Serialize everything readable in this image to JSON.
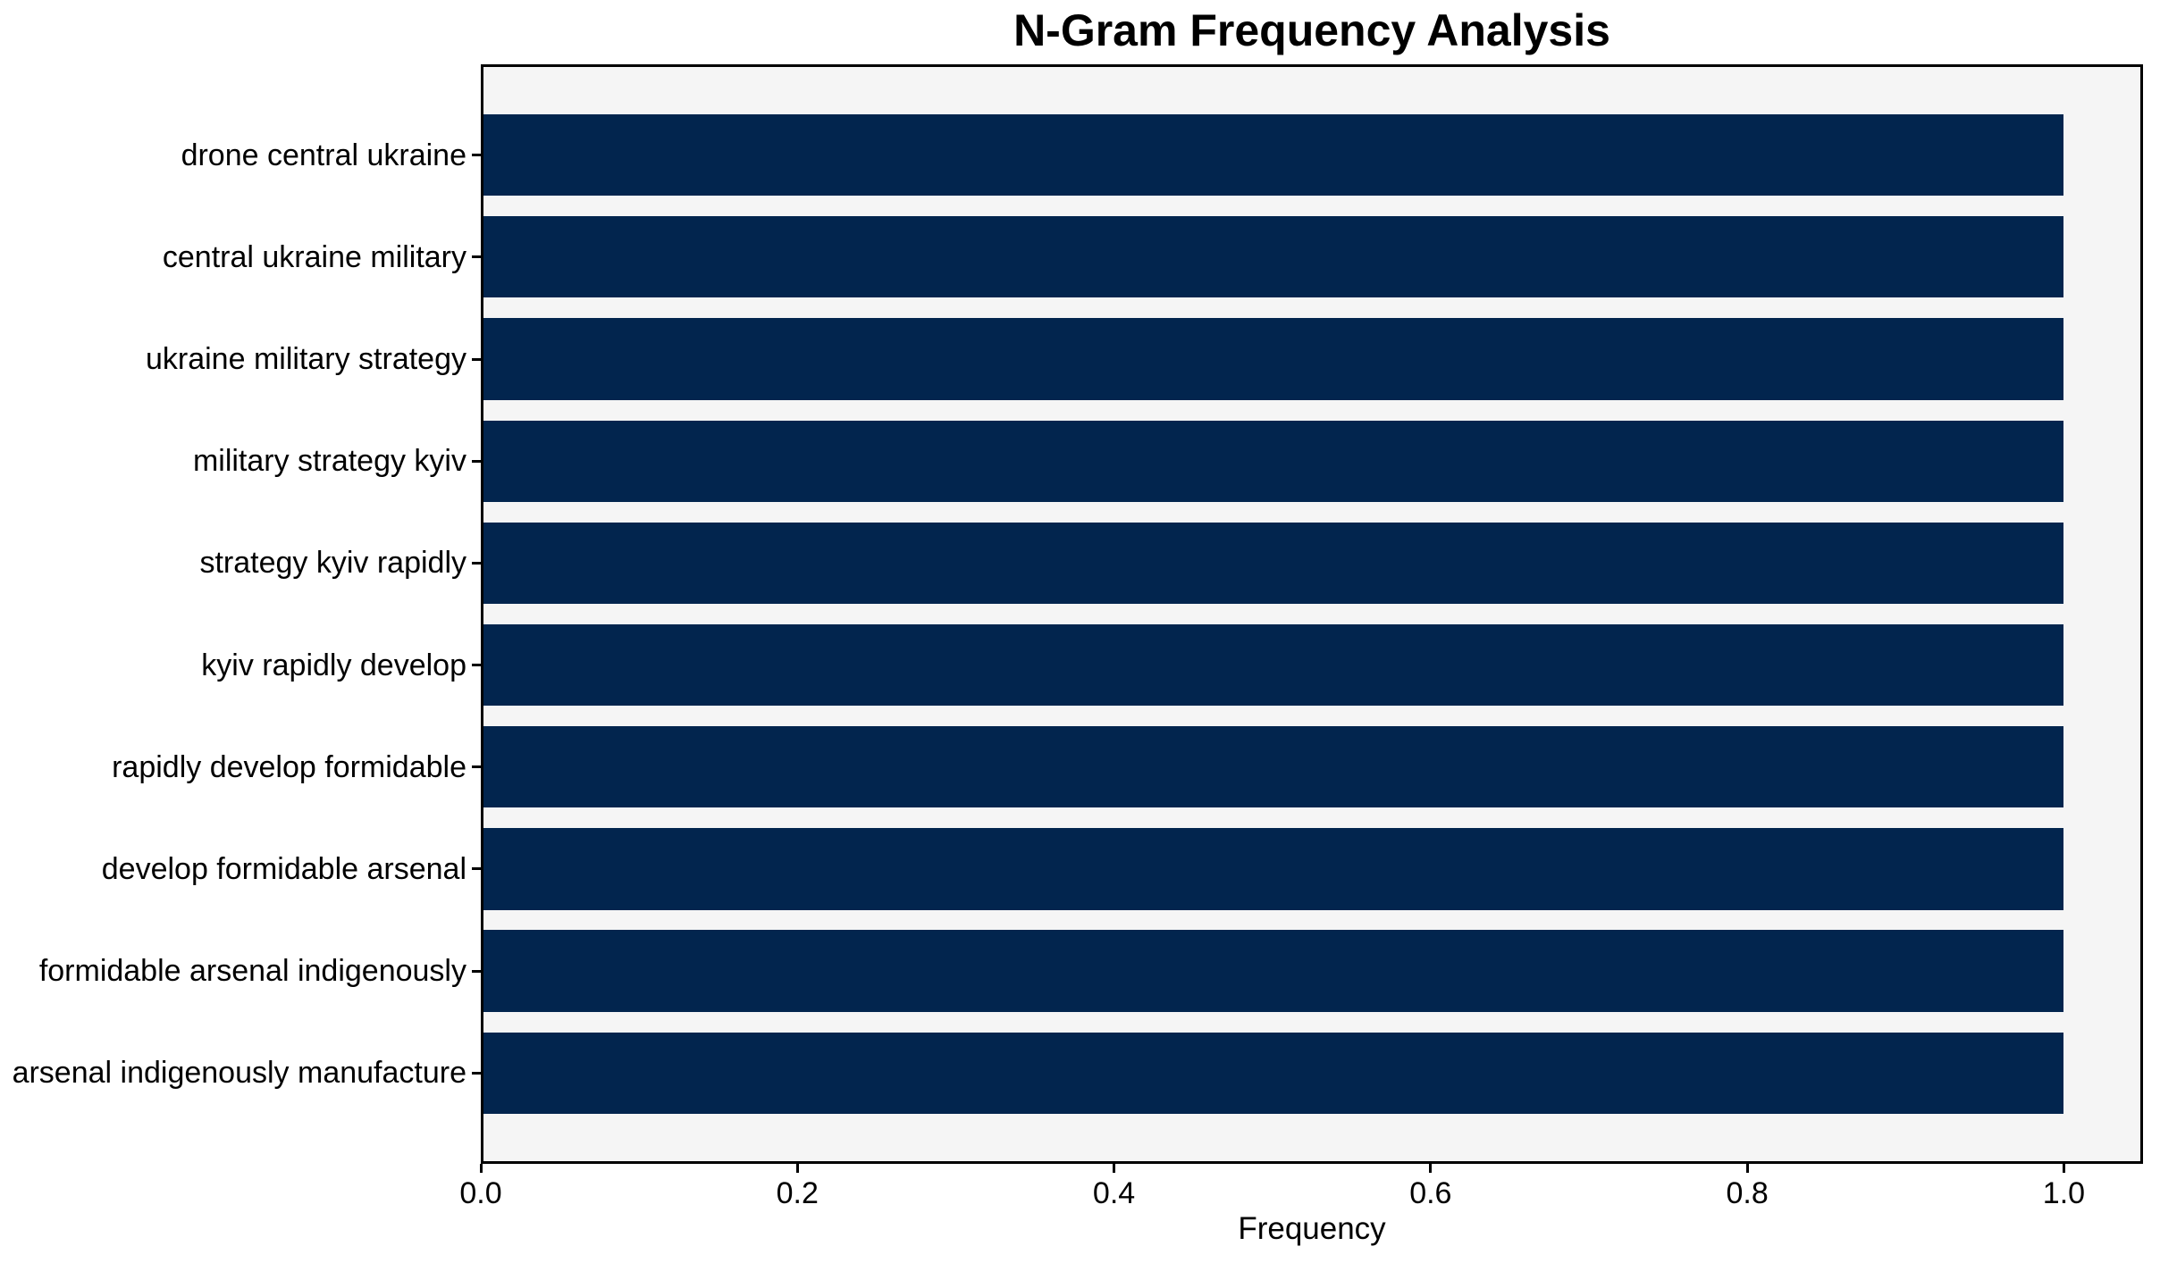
{
  "chart_data": {
    "type": "bar",
    "orientation": "horizontal",
    "title": "N-Gram Frequency Analysis",
    "xlabel": "Frequency",
    "ylabel": "",
    "categories": [
      "drone central ukraine",
      "central ukraine military",
      "ukraine military strategy",
      "military strategy kyiv",
      "strategy kyiv rapidly",
      "kyiv rapidly develop",
      "rapidly develop formidable",
      "develop formidable arsenal",
      "formidable arsenal indigenously",
      "arsenal indigenously manufacture"
    ],
    "values": [
      1.0,
      1.0,
      1.0,
      1.0,
      1.0,
      1.0,
      1.0,
      1.0,
      1.0,
      1.0
    ],
    "xlim": [
      0,
      1.05
    ],
    "xticks": [
      {
        "value": 0.0,
        "label": "0.0"
      },
      {
        "value": 0.2,
        "label": "0.2"
      },
      {
        "value": 0.4,
        "label": "0.4"
      },
      {
        "value": 0.6,
        "label": "0.6"
      },
      {
        "value": 0.8,
        "label": "0.8"
      },
      {
        "value": 1.0,
        "label": "1.0"
      }
    ],
    "grid": false,
    "legend": false,
    "bar_height_fraction": 0.8,
    "colors": {
      "bar": "#02254e",
      "plot_background": "#f5f5f5",
      "figure_background": "#ffffff",
      "spine": "#000000",
      "text": "#000000"
    }
  }
}
